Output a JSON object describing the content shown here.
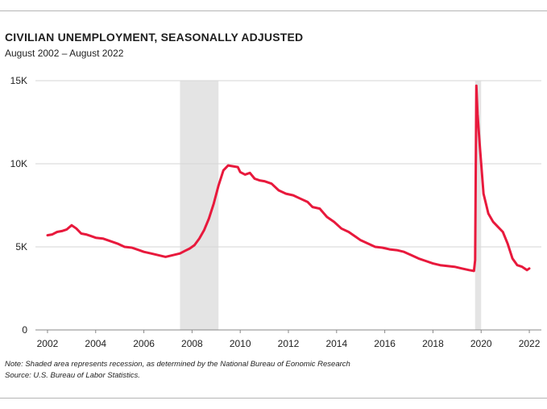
{
  "header": {
    "title": "CIVILIAN UNEMPLOYMENT, SEASONALLY ADJUSTED",
    "subtitle": "August 2002 – August 2022"
  },
  "footer": {
    "note": "Note: Shaded area represents recession, as determined by the National Bureau of Eonomic Research",
    "source": "Source: U.S. Bureau of Labor Statistics."
  },
  "colors": {
    "line": "#e8193c",
    "recession": "#e4e4e4",
    "grid": "#d6d6d6",
    "axis": "#888888"
  },
  "chart_data": {
    "type": "line",
    "title": "CIVILIAN UNEMPLOYMENT, SEASONALLY ADJUSTED",
    "subtitle": "August 2002 – August 2022",
    "xlabel": "",
    "ylabel": "",
    "xlim": [
      2001.5,
      2022.5
    ],
    "ylim": [
      0,
      15000
    ],
    "x_ticks": [
      2002,
      2004,
      2006,
      2008,
      2010,
      2012,
      2014,
      2016,
      2018,
      2020,
      2022
    ],
    "x_tick_labels": [
      "2002",
      "2004",
      "2006",
      "2008",
      "2010",
      "2012",
      "2014",
      "2016",
      "2018",
      "2020",
      "2022"
    ],
    "y_ticks": [
      0,
      5000,
      10000,
      15000
    ],
    "y_tick_labels": [
      "0",
      "5K",
      "10K",
      "15K"
    ],
    "grid": true,
    "recessions": [
      [
        2007.5,
        2009.1
      ],
      [
        2019.75,
        2020.0
      ]
    ],
    "series": [
      {
        "x": [
          2002.0,
          2002.2,
          2002.4,
          2002.6,
          2002.8,
          2003.0,
          2003.2,
          2003.4,
          2003.6,
          2003.8,
          2004.0,
          2004.3,
          2004.6,
          2004.9,
          2005.2,
          2005.5,
          2005.8,
          2006.0,
          2006.3,
          2006.6,
          2006.9,
          2007.2,
          2007.5,
          2007.7,
          2007.9,
          2008.1,
          2008.3,
          2008.5,
          2008.7,
          2008.9,
          2009.1,
          2009.3,
          2009.5,
          2009.7,
          2009.9,
          2010.0,
          2010.2,
          2010.4,
          2010.6,
          2010.8,
          2011.0,
          2011.3,
          2011.6,
          2011.9,
          2012.2,
          2012.5,
          2012.8,
          2013.0,
          2013.3,
          2013.6,
          2013.9,
          2014.2,
          2014.5,
          2014.8,
          2015.0,
          2015.3,
          2015.6,
          2015.9,
          2016.2,
          2016.5,
          2016.8,
          2017.1,
          2017.4,
          2017.7,
          2018.0,
          2018.3,
          2018.6,
          2018.9,
          2019.2,
          2019.5,
          2019.7,
          2019.75,
          2019.8,
          2019.85,
          2019.95,
          2020.1,
          2020.3,
          2020.5,
          2020.7,
          2020.9,
          2021.1,
          2021.3,
          2021.5,
          2021.7,
          2021.9,
          2022.0
        ],
        "y": [
          5700,
          5750,
          5900,
          5950,
          6050,
          6300,
          6100,
          5800,
          5750,
          5650,
          5550,
          5500,
          5350,
          5200,
          5000,
          4950,
          4800,
          4700,
          4600,
          4500,
          4400,
          4500,
          4600,
          4750,
          4900,
          5100,
          5500,
          6000,
          6700,
          7600,
          8700,
          9600,
          9900,
          9850,
          9800,
          9500,
          9350,
          9450,
          9100,
          9000,
          8950,
          8800,
          8400,
          8200,
          8100,
          7900,
          7700,
          7400,
          7300,
          6800,
          6500,
          6100,
          5900,
          5600,
          5400,
          5200,
          5000,
          4950,
          4850,
          4800,
          4700,
          4500,
          4300,
          4150,
          4000,
          3900,
          3850,
          3800,
          3700,
          3600,
          3550,
          4200,
          14700,
          13000,
          11000,
          8200,
          7000,
          6500,
          6200,
          5900,
          5200,
          4300,
          3900,
          3800,
          3600,
          3700
        ]
      }
    ]
  }
}
